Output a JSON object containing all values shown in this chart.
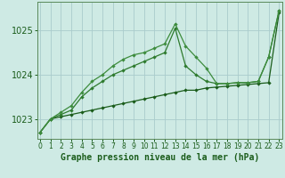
{
  "xlabel": "Graphe pression niveau de la mer (hPa)",
  "ylabel": "",
  "background_color": "#ceeae4",
  "grid_color": "#aacccc",
  "line_color_dark": "#1a5c1a",
  "line_color_mid": "#2d7a2d",
  "line_color_light": "#3d8c3d",
  "ylim": [
    1022.55,
    1025.65
  ],
  "xlim": [
    -0.3,
    23.3
  ],
  "yticks": [
    1023,
    1024,
    1025
  ],
  "xticks": [
    0,
    1,
    2,
    3,
    4,
    5,
    6,
    7,
    8,
    9,
    10,
    11,
    12,
    13,
    14,
    15,
    16,
    17,
    18,
    19,
    20,
    21,
    22,
    23
  ],
  "xtick_labels": [
    "0",
    "1",
    "2",
    "3",
    "4",
    "5",
    "6",
    "7",
    "8",
    "9",
    "10",
    "11",
    "12",
    "13",
    "14",
    "15",
    "16",
    "17",
    "18",
    "19",
    "20",
    "21",
    "22",
    "23"
  ],
  "series1_x": [
    0,
    1,
    2,
    3,
    4,
    5,
    6,
    7,
    8,
    9,
    10,
    11,
    12,
    13,
    14,
    15,
    16,
    17,
    18,
    19,
    20,
    21,
    22,
    23
  ],
  "series1_y": [
    1022.7,
    1023.0,
    1023.05,
    1023.1,
    1023.15,
    1023.2,
    1023.25,
    1023.3,
    1023.35,
    1023.4,
    1023.45,
    1023.5,
    1023.55,
    1023.6,
    1023.65,
    1023.65,
    1023.7,
    1023.72,
    1023.74,
    1023.76,
    1023.78,
    1023.8,
    1023.82,
    1025.4
  ],
  "series2_x": [
    0,
    1,
    2,
    3,
    4,
    5,
    6,
    7,
    8,
    9,
    10,
    11,
    12,
    13,
    14,
    15,
    16,
    17,
    18,
    19,
    20,
    21,
    22,
    23
  ],
  "series2_y": [
    1022.7,
    1023.0,
    1023.1,
    1023.2,
    1023.5,
    1023.7,
    1023.85,
    1024.0,
    1024.1,
    1024.2,
    1024.3,
    1024.4,
    1024.5,
    1025.05,
    1024.2,
    1024.0,
    1023.85,
    1023.8,
    1023.8,
    1023.82,
    1023.82,
    1023.85,
    1024.4,
    1025.45
  ],
  "series3_x": [
    0,
    1,
    2,
    3,
    4,
    5,
    6,
    7,
    8,
    9,
    10,
    11,
    12,
    13,
    14,
    15,
    16,
    17,
    18,
    19,
    20,
    21,
    22,
    23
  ],
  "series3_y": [
    1022.7,
    1023.0,
    1023.15,
    1023.3,
    1023.6,
    1023.85,
    1024.0,
    1024.2,
    1024.35,
    1024.45,
    1024.5,
    1024.6,
    1024.7,
    1025.15,
    1024.65,
    1024.4,
    1024.15,
    1023.8,
    1023.8,
    1023.82,
    1023.82,
    1023.85,
    1024.4,
    1025.45
  ],
  "xlabel_fontsize": 7,
  "ytick_fontsize": 7,
  "xtick_fontsize": 5.5
}
